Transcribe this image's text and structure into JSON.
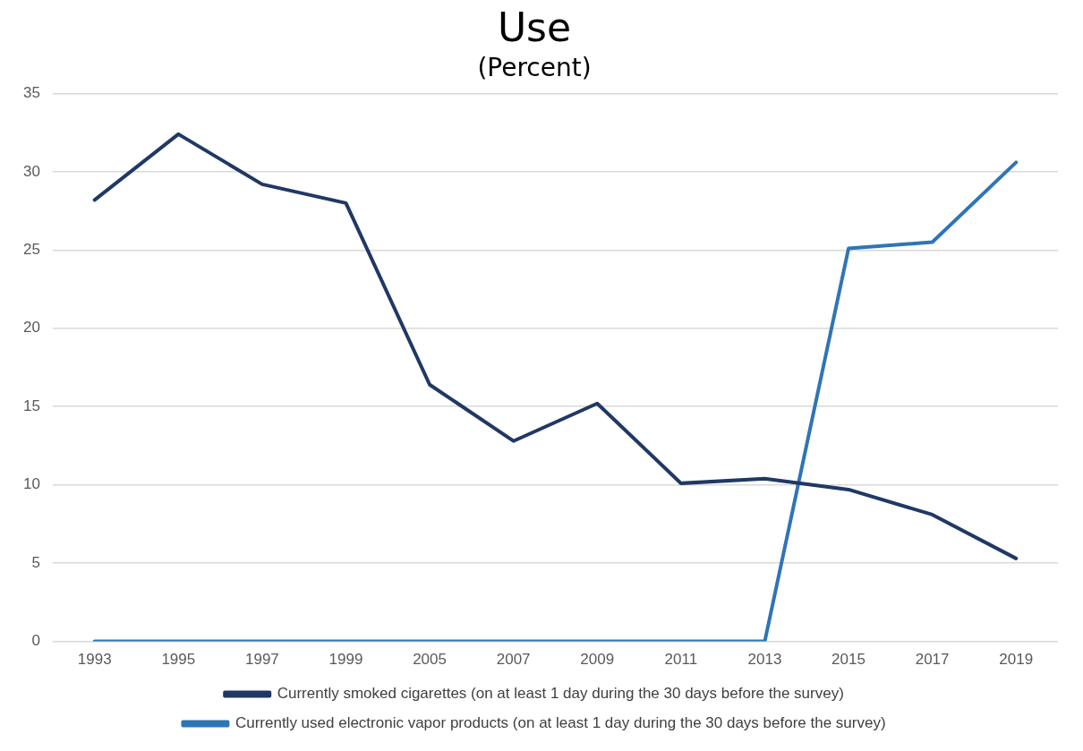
{
  "chart_data": {
    "type": "line",
    "title": "Use",
    "subtitle": "(Percent)",
    "categories": [
      "1993",
      "1995",
      "1997",
      "1999",
      "2005",
      "2007",
      "2009",
      "2011",
      "2013",
      "2015",
      "2017",
      "2019"
    ],
    "series": [
      {
        "name": "Currently smoked cigarettes (on at least 1 day during the 30 days before the survey)",
        "color": "#203864",
        "values": [
          28.2,
          32.4,
          29.2,
          28.0,
          16.4,
          12.8,
          15.2,
          10.1,
          10.4,
          9.7,
          8.1,
          5.3
        ]
      },
      {
        "name": "Currently used electronic vapor products (on at least 1 day during the 30 days before the survey)",
        "color": "#2e75b6",
        "values": [
          0,
          0,
          0,
          0,
          0,
          0,
          0,
          0,
          0,
          25.1,
          25.5,
          30.6
        ]
      }
    ],
    "ylim": [
      0,
      35
    ],
    "yticks": [
      0,
      5,
      10,
      15,
      20,
      25,
      30,
      35
    ],
    "grid": "y",
    "legend": "bottom",
    "marker": "none",
    "line_style": "solid"
  }
}
